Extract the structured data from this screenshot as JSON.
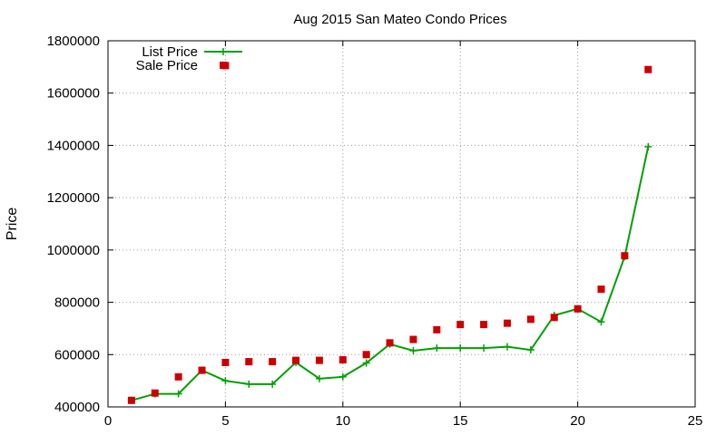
{
  "chart_data": {
    "type": "line",
    "title": "Aug 2015 San Mateo Condo Prices",
    "xlabel": "",
    "ylabel": "Price",
    "xlim": [
      0,
      25
    ],
    "ylim": [
      400000,
      1800000
    ],
    "x_ticks": [
      0,
      5,
      10,
      15,
      20,
      25
    ],
    "y_ticks": [
      400000,
      600000,
      800000,
      1000000,
      1200000,
      1400000,
      1600000,
      1800000
    ],
    "grid": true,
    "legend_position": "top-left",
    "x": [
      1,
      2,
      3,
      4,
      5,
      6,
      7,
      8,
      9,
      10,
      11,
      12,
      13,
      14,
      15,
      16,
      17,
      18,
      19,
      20,
      21,
      22,
      23
    ],
    "series": [
      {
        "name": "List Price",
        "style": "line-with-plus-markers",
        "color": "#00a000",
        "values": [
          425000,
          450000,
          450000,
          540000,
          500000,
          487000,
          487000,
          570000,
          508000,
          515000,
          568000,
          640000,
          615000,
          625000,
          625000,
          625000,
          630000,
          618000,
          750000,
          775000,
          725000,
          975000,
          1395000
        ]
      },
      {
        "name": "Sale Price",
        "style": "square-points",
        "color": "#cc0000",
        "values": [
          425000,
          453000,
          515000,
          540000,
          570000,
          573000,
          573000,
          578000,
          578000,
          580000,
          600000,
          645000,
          658000,
          695000,
          715000,
          715000,
          720000,
          735000,
          742000,
          775000,
          850000,
          978000,
          1690000
        ]
      }
    ],
    "extra_points": [
      {
        "series": "Sale Price",
        "x": 5,
        "y": 1705000
      }
    ]
  }
}
